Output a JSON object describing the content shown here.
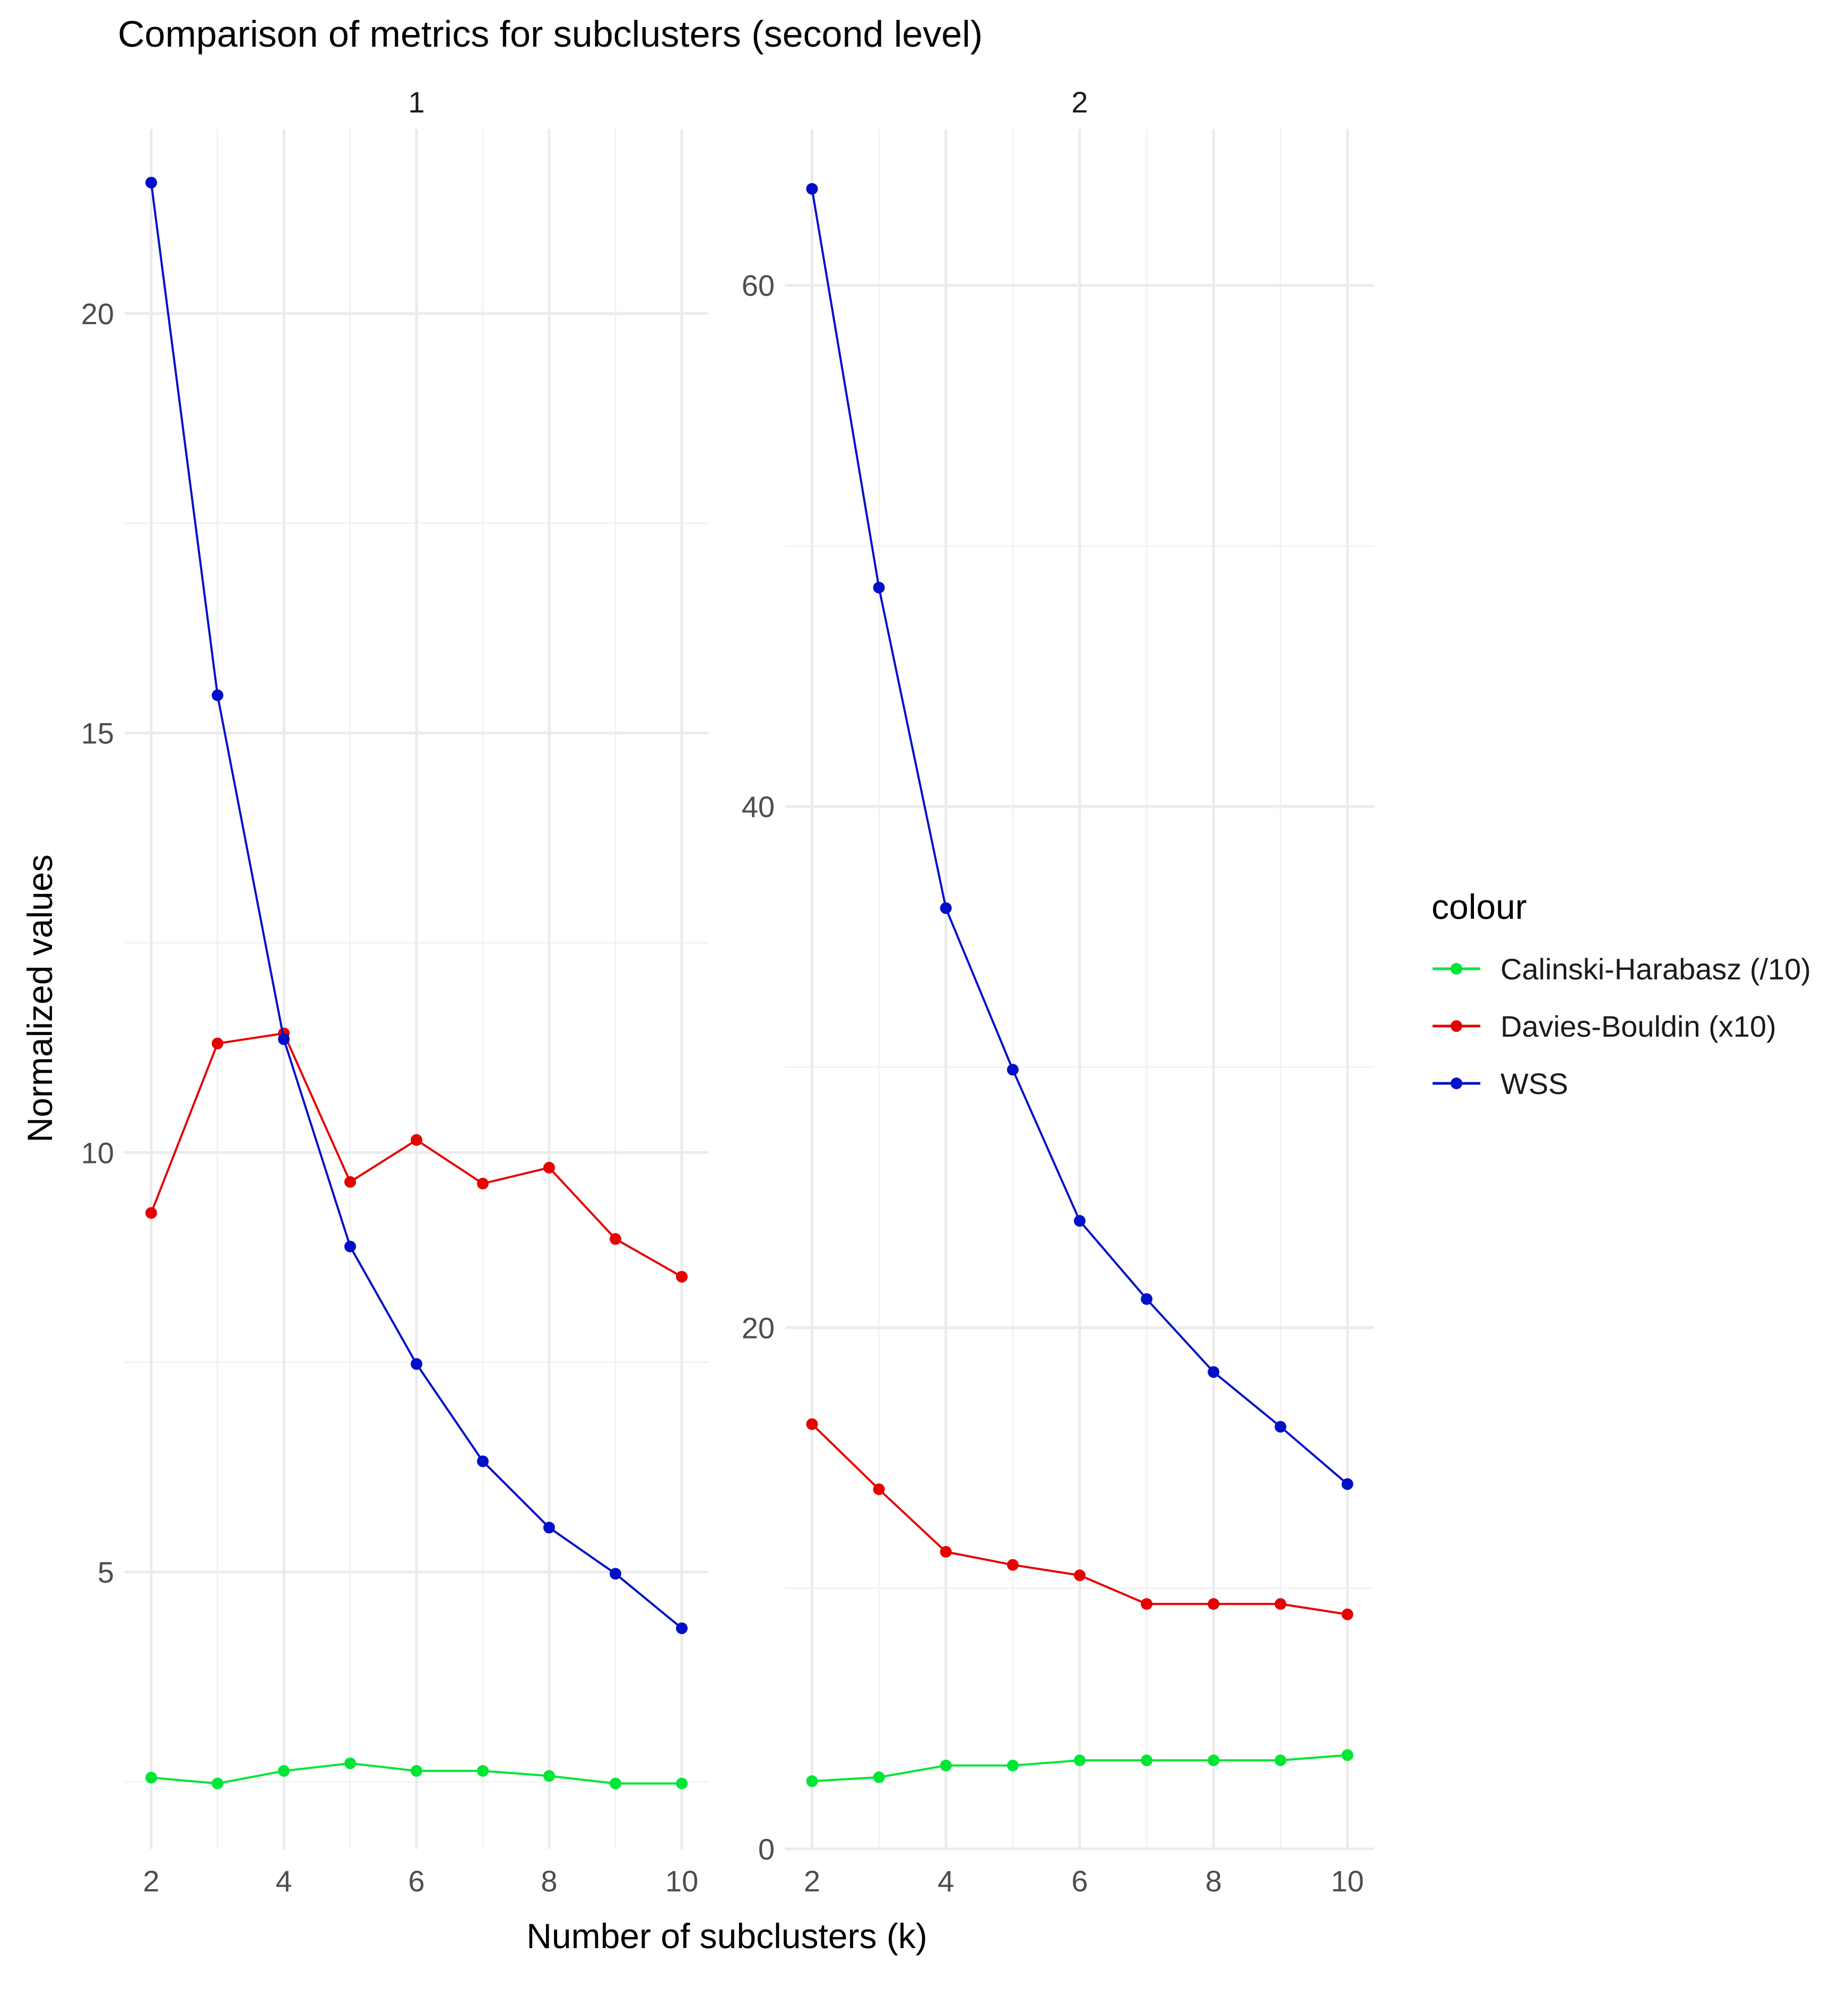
{
  "chart_data": {
    "type": "line",
    "title": "Comparison of metrics for subclusters (second level)",
    "xlabel": "Number of subclusters (k)",
    "ylabel": "Normalized values",
    "legend": {
      "title": "colour",
      "placement": "right",
      "entries": [
        "Calinski-Harabasz (/10)",
        "Davies-Bouldin (x10)",
        "WSS"
      ]
    },
    "colors": {
      "Calinski-Harabasz (/10)": "#00e636",
      "Davies-Bouldin (x10)": "#e60000",
      "WSS": "#0010c8"
    },
    "grid": true,
    "x": [
      2,
      3,
      4,
      5,
      6,
      7,
      8,
      9,
      10
    ],
    "xticks": [
      2,
      4,
      6,
      8,
      10
    ],
    "facets": [
      {
        "label": "1",
        "ylim": [
          1.7,
          22.2
        ],
        "yticks": [
          5,
          10,
          15,
          20
        ],
        "series": [
          {
            "name": "Calinski-Harabasz (/10)",
            "values": [
              2.55,
              2.48,
              2.63,
              2.72,
              2.63,
              2.63,
              2.57,
              2.48,
              2.48
            ]
          },
          {
            "name": "Davies-Bouldin (x10)",
            "values": [
              9.28,
              11.3,
              11.42,
              9.65,
              10.15,
              9.63,
              9.82,
              8.97,
              8.52
            ]
          },
          {
            "name": "WSS",
            "values": [
              21.56,
              15.45,
              11.35,
              8.88,
              7.48,
              6.32,
              5.53,
              4.98,
              4.33
            ]
          }
        ]
      },
      {
        "label": "2",
        "ylim": [
          0,
          66
        ],
        "yticks": [
          0,
          20,
          40,
          60
        ],
        "series": [
          {
            "name": "Calinski-Harabasz (/10)",
            "values": [
              2.6,
              2.75,
              3.2,
              3.2,
              3.4,
              3.4,
              3.4,
              3.4,
              3.6
            ]
          },
          {
            "name": "Davies-Bouldin (x10)",
            "values": [
              16.3,
              13.8,
              11.4,
              10.9,
              10.5,
              9.4,
              9.4,
              9.4,
              9.0
            ]
          },
          {
            "name": "WSS",
            "values": [
              63.7,
              48.4,
              36.1,
              29.9,
              24.1,
              21.1,
              18.3,
              16.2,
              14.0
            ]
          }
        ]
      }
    ]
  }
}
